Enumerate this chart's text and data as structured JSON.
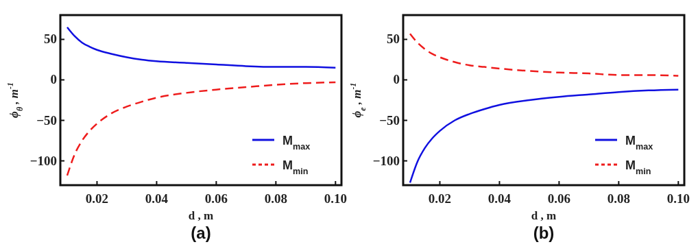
{
  "chart_data": [
    {
      "type": "line",
      "xlabel": "d , m",
      "ylabel": "ϕ$_{θ}$ , m$^{-1}$",
      "annotations": [
        "(a)"
      ],
      "xlim": [
        0.0077,
        0.102
      ],
      "ylim": [
        -130,
        80
      ],
      "xticks": [
        0.02,
        0.04,
        0.06,
        0.08,
        {
          "value": 0.1,
          "label": "0.10"
        }
      ],
      "yticks": [
        -100,
        -50,
        0,
        50
      ],
      "legend": "bottom right",
      "x": [
        0.01,
        0.0125,
        0.015,
        0.0175,
        0.02,
        0.025,
        0.03,
        0.035,
        0.04,
        0.05,
        0.06,
        0.07,
        0.08,
        0.09,
        0.1
      ],
      "series": [
        {
          "name": "M$_{max}$",
          "color": "#1010e0",
          "line_style": "solid",
          "values": [
            65,
            54,
            46,
            41,
            37,
            32,
            28,
            25,
            23,
            21,
            19,
            17,
            16,
            16,
            15
          ]
        },
        {
          "name": "M$_{min}$",
          "color": "#ee1c1c",
          "line_style": "dashed",
          "values": [
            -118,
            -92,
            -75,
            -63,
            -54,
            -41,
            -33,
            -27,
            -22,
            -16,
            -12,
            -9,
            -6,
            -4,
            -3
          ]
        }
      ]
    },
    {
      "type": "line",
      "xlabel": "d , m",
      "ylabel": "ϕ$_{e}$ , m$^{-1}$",
      "annotations": [
        "(b)"
      ],
      "xlim": [
        0.0077,
        0.102
      ],
      "ylim": [
        -130,
        80
      ],
      "xticks": [
        0.02,
        0.04,
        0.06,
        0.08,
        {
          "value": 0.1,
          "label": "0.10"
        }
      ],
      "yticks": [
        -100,
        -50,
        0,
        50
      ],
      "legend": "bottom right",
      "x": [
        0.01,
        0.0125,
        0.015,
        0.0175,
        0.02,
        0.025,
        0.03,
        0.035,
        0.04,
        0.05,
        0.06,
        0.07,
        0.08,
        0.09,
        0.1
      ],
      "series": [
        {
          "name": "M$_{max}$",
          "color": "#1010e0",
          "line_style": "solid",
          "values": [
            -127,
            -101,
            -84,
            -72,
            -63,
            -50,
            -42,
            -36,
            -31,
            -25,
            -21,
            -18,
            -15,
            -13,
            -12
          ]
        },
        {
          "name": "M$_{min}$",
          "color": "#ee1c1c",
          "line_style": "dashed",
          "values": [
            57,
            46,
            38,
            32,
            28,
            22,
            18,
            16,
            14,
            11,
            9,
            8,
            6,
            6,
            5
          ]
        }
      ]
    }
  ]
}
